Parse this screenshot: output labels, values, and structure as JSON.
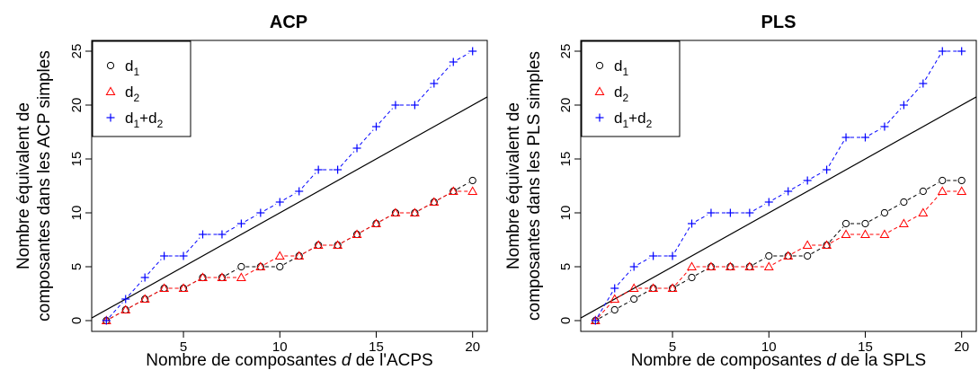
{
  "chart_data": [
    {
      "type": "line",
      "title": "ACP",
      "xlabel_parts": [
        "Nombre de composantes ",
        "d",
        " de l'ACPS"
      ],
      "ylabel_lines": [
        "Nombre équivalent de",
        "composantes dans les ACP simples"
      ],
      "xlim": [
        1,
        20
      ],
      "ylim": [
        0,
        25
      ],
      "xticks": [
        5,
        10,
        15,
        20
      ],
      "yticks": [
        0,
        5,
        10,
        15,
        20,
        25
      ],
      "grid": false,
      "legend_position": "top-left",
      "x": [
        1,
        2,
        3,
        4,
        5,
        6,
        7,
        8,
        9,
        10,
        11,
        12,
        13,
        14,
        15,
        16,
        17,
        18,
        19,
        20
      ],
      "series": [
        {
          "name_base": "d",
          "name_sub": "1",
          "marker": "circle",
          "color": "#000000",
          "values": [
            0,
            1,
            2,
            3,
            3,
            4,
            4,
            5,
            5,
            5,
            6,
            7,
            7,
            8,
            9,
            10,
            10,
            11,
            12,
            13
          ]
        },
        {
          "name_base": "d",
          "name_sub": "2",
          "marker": "triangle",
          "color": "#ff0000",
          "values": [
            0,
            1,
            2,
            3,
            3,
            4,
            4,
            4,
            5,
            6,
            6,
            7,
            7,
            8,
            9,
            10,
            10,
            11,
            12,
            12
          ]
        },
        {
          "name_base": "d",
          "name_sub": "1",
          "name_plus": "+",
          "name_base2": "d",
          "name_sub2": "2",
          "marker": "plus",
          "color": "#0000ff",
          "values": [
            0,
            2,
            4,
            6,
            6,
            8,
            8,
            9,
            10,
            11,
            12,
            14,
            14,
            16,
            18,
            20,
            20,
            22,
            24,
            25
          ]
        }
      ],
      "reference_line": {
        "intercept": 0,
        "slope": 1,
        "color": "#000000"
      }
    },
    {
      "type": "line",
      "title": "PLS",
      "xlabel_parts": [
        "Nombre de composantes ",
        "d",
        " de la SPLS"
      ],
      "ylabel_lines": [
        "Nombre équivalent de",
        "composantes dans les PLS simples"
      ],
      "xlim": [
        1,
        20
      ],
      "ylim": [
        0,
        25
      ],
      "xticks": [
        5,
        10,
        15,
        20
      ],
      "yticks": [
        0,
        5,
        10,
        15,
        20,
        25
      ],
      "grid": false,
      "legend_position": "top-left",
      "x": [
        1,
        2,
        3,
        4,
        5,
        6,
        7,
        8,
        9,
        10,
        11,
        12,
        13,
        14,
        15,
        16,
        17,
        18,
        19,
        20
      ],
      "series": [
        {
          "name_base": "d",
          "name_sub": "1",
          "marker": "circle",
          "color": "#000000",
          "values": [
            0,
            1,
            2,
            3,
            3,
            4,
            5,
            5,
            5,
            6,
            6,
            6,
            7,
            9,
            9,
            10,
            11,
            12,
            13,
            13
          ]
        },
        {
          "name_base": "d",
          "name_sub": "2",
          "marker": "triangle",
          "color": "#ff0000",
          "values": [
            0,
            2,
            3,
            3,
            3,
            5,
            5,
            5,
            5,
            5,
            6,
            7,
            7,
            8,
            8,
            8,
            9,
            10,
            12,
            12
          ]
        },
        {
          "name_base": "d",
          "name_sub": "1",
          "name_plus": "+",
          "name_base2": "d",
          "name_sub2": "2",
          "marker": "plus",
          "color": "#0000ff",
          "values": [
            0,
            3,
            5,
            6,
            6,
            9,
            10,
            10,
            10,
            11,
            12,
            13,
            14,
            17,
            17,
            18,
            20,
            22,
            25,
            25
          ]
        }
      ],
      "reference_line": {
        "intercept": 0,
        "slope": 1,
        "color": "#000000"
      }
    }
  ]
}
